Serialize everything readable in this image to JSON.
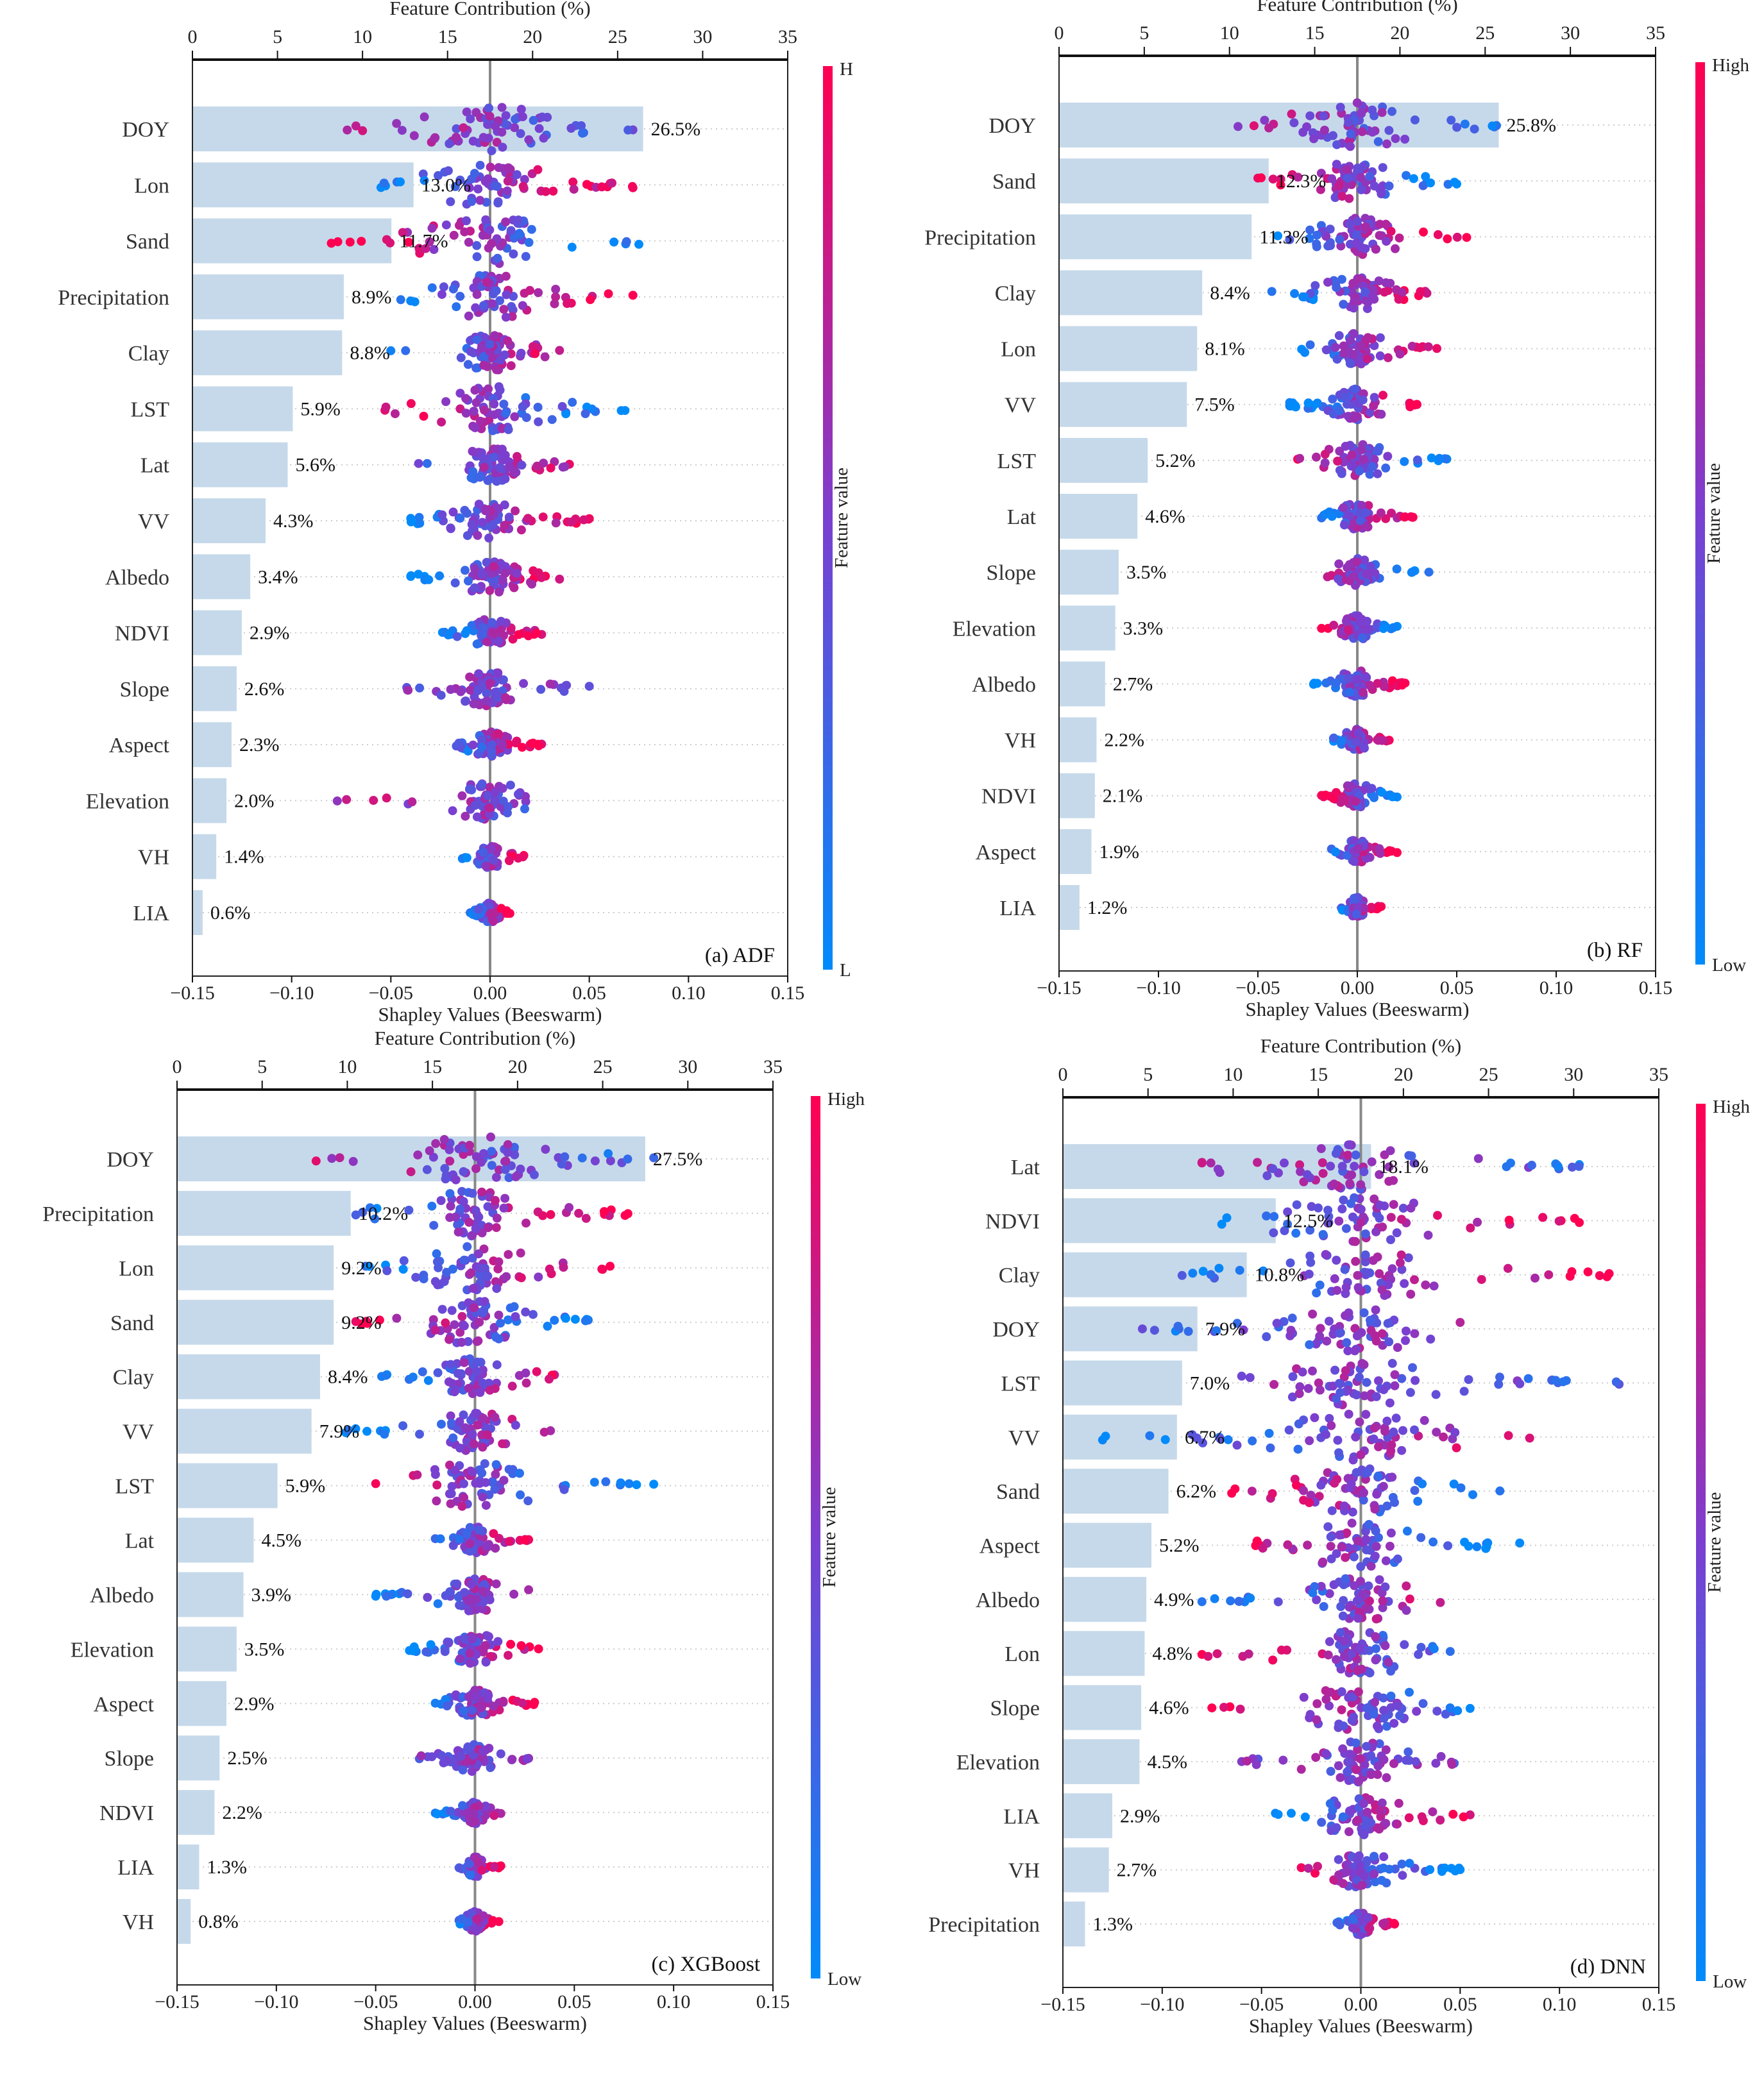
{
  "common": {
    "top_axis_label": "Feature Contribution (%)",
    "bottom_axis_label": "Shapley Values (Beeswarm)",
    "colorbar_label": "Feature value",
    "top_ticks": [
      "0",
      "5",
      "10",
      "15",
      "20",
      "25",
      "30",
      "35"
    ],
    "bottom_ticks": [
      "−0.15",
      "−0.10",
      "−0.05",
      "0.00",
      "0.05",
      "0.10",
      "0.15"
    ],
    "colors": {
      "low": "#008bfb",
      "mid": "#7b3fd0",
      "high": "#ff0052",
      "bar": "#c6d9ea",
      "zero_line": "#888888"
    }
  },
  "chart_data": [
    {
      "type": "bar+beeswarm",
      "title": "(a) ADF",
      "colorbar_high": "H",
      "colorbar_low": "L",
      "xlim_shap": [
        -0.15,
        0.15
      ],
      "xlim_pct": [
        0,
        35
      ],
      "features": [
        {
          "name": "DOY",
          "pct": 26.5,
          "label": "26.5%",
          "range": [
            -0.072,
            0.072
          ],
          "trend": -0.5
        },
        {
          "name": "Lon",
          "pct": 13.0,
          "label": "13.0%",
          "range": [
            -0.055,
            0.072
          ],
          "trend": 1
        },
        {
          "name": "Sand",
          "pct": 11.7,
          "label": "11.7%",
          "range": [
            -0.08,
            0.075
          ],
          "trend": -1
        },
        {
          "name": "Precipitation",
          "pct": 8.9,
          "label": "8.9%",
          "range": [
            -0.045,
            0.072
          ],
          "trend": 1
        },
        {
          "name": "Clay",
          "pct": 8.8,
          "label": "8.8%",
          "range": [
            -0.05,
            0.035
          ],
          "trend": 1
        },
        {
          "name": "LST",
          "pct": 5.9,
          "label": "5.9%",
          "range": [
            -0.053,
            0.068
          ],
          "trend": -1
        },
        {
          "name": "Lat",
          "pct": 5.6,
          "label": "5.6%",
          "range": [
            -0.036,
            0.04
          ],
          "trend": 0.5
        },
        {
          "name": "VV",
          "pct": 4.3,
          "label": "4.3%",
          "range": [
            -0.04,
            0.05
          ],
          "trend": 1
        },
        {
          "name": "Albedo",
          "pct": 3.4,
          "label": "3.4%",
          "range": [
            -0.04,
            0.035
          ],
          "trend": 1
        },
        {
          "name": "NDVI",
          "pct": 2.9,
          "label": "2.9%",
          "range": [
            -0.024,
            0.026
          ],
          "trend": 1
        },
        {
          "name": "Slope",
          "pct": 2.6,
          "label": "2.6%",
          "range": [
            -0.042,
            0.05
          ],
          "trend": 0
        },
        {
          "name": "Aspect",
          "pct": 2.3,
          "label": "2.3%",
          "range": [
            -0.017,
            0.026
          ],
          "trend": 1
        },
        {
          "name": "Elevation",
          "pct": 2.0,
          "label": "2.0%",
          "range": [
            -0.077,
            0.018
          ],
          "trend": -0.5
        },
        {
          "name": "VH",
          "pct": 1.4,
          "label": "1.4%",
          "range": [
            -0.014,
            0.017
          ],
          "trend": 1
        },
        {
          "name": "LIA",
          "pct": 0.6,
          "label": "0.6%",
          "range": [
            -0.01,
            0.01
          ],
          "trend": 1
        }
      ]
    },
    {
      "type": "bar+beeswarm",
      "title": "(b) RF",
      "colorbar_high": "High",
      "colorbar_low": "Low",
      "xlim_shap": [
        -0.15,
        0.15
      ],
      "xlim_pct": [
        0,
        35
      ],
      "features": [
        {
          "name": "DOY",
          "pct": 25.8,
          "label": "25.8%",
          "range": [
            -0.06,
            0.07
          ],
          "trend": -0.5
        },
        {
          "name": "Sand",
          "pct": 12.3,
          "label": "12.3%",
          "range": [
            -0.05,
            0.05
          ],
          "trend": -1
        },
        {
          "name": "Precipitation",
          "pct": 11.3,
          "label": "11.3%",
          "range": [
            -0.04,
            0.055
          ],
          "trend": 1
        },
        {
          "name": "Clay",
          "pct": 8.4,
          "label": "8.4%",
          "range": [
            -0.043,
            0.035
          ],
          "trend": 1
        },
        {
          "name": "Lon",
          "pct": 8.1,
          "label": "8.1%",
          "range": [
            -0.028,
            0.04
          ],
          "trend": 1
        },
        {
          "name": "VV",
          "pct": 7.5,
          "label": "7.5%",
          "range": [
            -0.034,
            0.03
          ],
          "trend": 1
        },
        {
          "name": "LST",
          "pct": 5.2,
          "label": "5.2%",
          "range": [
            -0.03,
            0.045
          ],
          "trend": -1
        },
        {
          "name": "Lat",
          "pct": 4.6,
          "label": "4.6%",
          "range": [
            -0.018,
            0.028
          ],
          "trend": 1
        },
        {
          "name": "Slope",
          "pct": 3.5,
          "label": "3.5%",
          "range": [
            -0.015,
            0.036
          ],
          "trend": -1
        },
        {
          "name": "Elevation",
          "pct": 3.3,
          "label": "3.3%",
          "range": [
            -0.018,
            0.02
          ],
          "trend": -1
        },
        {
          "name": "Albedo",
          "pct": 2.7,
          "label": "2.7%",
          "range": [
            -0.022,
            0.024
          ],
          "trend": 1
        },
        {
          "name": "VH",
          "pct": 2.2,
          "label": "2.2%",
          "range": [
            -0.012,
            0.016
          ],
          "trend": 1
        },
        {
          "name": "NDVI",
          "pct": 2.1,
          "label": "2.1%",
          "range": [
            -0.018,
            0.02
          ],
          "trend": -1
        },
        {
          "name": "Aspect",
          "pct": 1.9,
          "label": "1.9%",
          "range": [
            -0.013,
            0.02
          ],
          "trend": 1
        },
        {
          "name": "LIA",
          "pct": 1.2,
          "label": "1.2%",
          "range": [
            -0.008,
            0.012
          ],
          "trend": 1
        }
      ]
    },
    {
      "type": "bar+beeswarm",
      "title": "(c) XGBoost",
      "colorbar_high": "High",
      "colorbar_low": "Low",
      "xlim_shap": [
        -0.15,
        0.15
      ],
      "xlim_pct": [
        0,
        35
      ],
      "features": [
        {
          "name": "DOY",
          "pct": 27.5,
          "label": "27.5%",
          "range": [
            -0.08,
            0.09
          ],
          "trend": -0.5
        },
        {
          "name": "Precipitation",
          "pct": 10.2,
          "label": "10.2%",
          "range": [
            -0.06,
            0.077
          ],
          "trend": 1
        },
        {
          "name": "Lon",
          "pct": 9.2,
          "label": "9.2%",
          "range": [
            -0.055,
            0.068
          ],
          "trend": 1
        },
        {
          "name": "Sand",
          "pct": 9.2,
          "label": "9.2%",
          "range": [
            -0.06,
            0.057
          ],
          "trend": -1
        },
        {
          "name": "Clay",
          "pct": 8.4,
          "label": "8.4%",
          "range": [
            -0.047,
            0.04
          ],
          "trend": 1
        },
        {
          "name": "VV",
          "pct": 7.9,
          "label": "7.9%",
          "range": [
            -0.065,
            0.038
          ],
          "trend": 1
        },
        {
          "name": "LST",
          "pct": 5.9,
          "label": "5.9%",
          "range": [
            -0.05,
            0.09
          ],
          "trend": -1
        },
        {
          "name": "Lat",
          "pct": 4.5,
          "label": "4.5%",
          "range": [
            -0.02,
            0.027
          ],
          "trend": 1
        },
        {
          "name": "Albedo",
          "pct": 3.9,
          "label": "3.9%",
          "range": [
            -0.05,
            0.027
          ],
          "trend": 1
        },
        {
          "name": "Elevation",
          "pct": 3.5,
          "label": "3.5%",
          "range": [
            -0.033,
            0.032
          ],
          "trend": 1
        },
        {
          "name": "Aspect",
          "pct": 2.9,
          "label": "2.9%",
          "range": [
            -0.02,
            0.03
          ],
          "trend": 1
        },
        {
          "name": "Slope",
          "pct": 2.5,
          "label": "2.5%",
          "range": [
            -0.028,
            0.027
          ],
          "trend": 0
        },
        {
          "name": "NDVI",
          "pct": 2.2,
          "label": "2.2%",
          "range": [
            -0.02,
            0.013
          ],
          "trend": 1
        },
        {
          "name": "LIA",
          "pct": 1.3,
          "label": "1.3%",
          "range": [
            -0.008,
            0.013
          ],
          "trend": 1
        },
        {
          "name": "VH",
          "pct": 0.8,
          "label": "0.8%",
          "range": [
            -0.008,
            0.012
          ],
          "trend": 1
        }
      ]
    },
    {
      "type": "bar+beeswarm",
      "title": "(d) DNN",
      "colorbar_high": "High",
      "colorbar_low": "Low",
      "xlim_shap": [
        -0.15,
        0.15
      ],
      "xlim_pct": [
        0,
        35
      ],
      "features": [
        {
          "name": "Lat",
          "pct": 18.1,
          "label": "18.1%",
          "range": [
            -0.08,
            0.11
          ],
          "trend": -0.5
        },
        {
          "name": "NDVI",
          "pct": 12.5,
          "label": "12.5%",
          "range": [
            -0.07,
            0.11
          ],
          "trend": 1
        },
        {
          "name": "Clay",
          "pct": 10.8,
          "label": "10.8%",
          "range": [
            -0.09,
            0.125
          ],
          "trend": 1
        },
        {
          "name": "DOY",
          "pct": 7.9,
          "label": "7.9%",
          "range": [
            -0.11,
            0.05
          ],
          "trend": 0.5
        },
        {
          "name": "LST",
          "pct": 7.0,
          "label": "7.0%",
          "range": [
            -0.06,
            0.13
          ],
          "trend": -0.5
        },
        {
          "name": "VV",
          "pct": 6.7,
          "label": "6.7%",
          "range": [
            -0.13,
            0.085
          ],
          "trend": 1
        },
        {
          "name": "Sand",
          "pct": 6.2,
          "label": "6.2%",
          "range": [
            -0.065,
            0.07
          ],
          "trend": -1
        },
        {
          "name": "Aspect",
          "pct": 5.2,
          "label": "5.2%",
          "range": [
            -0.053,
            0.08
          ],
          "trend": -1
        },
        {
          "name": "Albedo",
          "pct": 4.9,
          "label": "4.9%",
          "range": [
            -0.08,
            0.04
          ],
          "trend": 1
        },
        {
          "name": "Lon",
          "pct": 4.8,
          "label": "4.8%",
          "range": [
            -0.08,
            0.045
          ],
          "trend": -1
        },
        {
          "name": "Slope",
          "pct": 4.6,
          "label": "4.6%",
          "range": [
            -0.075,
            0.055
          ],
          "trend": -1
        },
        {
          "name": "Elevation",
          "pct": 4.5,
          "label": "4.5%",
          "range": [
            -0.06,
            0.047
          ],
          "trend": 0
        },
        {
          "name": "LIA",
          "pct": 2.9,
          "label": "2.9%",
          "range": [
            -0.043,
            0.055
          ],
          "trend": 1
        },
        {
          "name": "VH",
          "pct": 2.7,
          "label": "2.7%",
          "range": [
            -0.03,
            0.05
          ],
          "trend": -1
        },
        {
          "name": "Precipitation",
          "pct": 1.3,
          "label": "1.3%",
          "range": [
            -0.012,
            0.017
          ],
          "trend": 1
        }
      ]
    }
  ]
}
